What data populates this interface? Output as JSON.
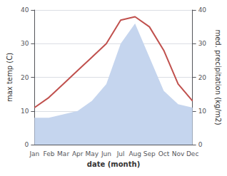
{
  "chart_data": {
    "type": "line",
    "categories": [
      "Jan",
      "Feb",
      "Mar",
      "Apr",
      "May",
      "Jun",
      "Jul",
      "Aug",
      "Sep",
      "Oct",
      "Nov",
      "Dec"
    ],
    "series": [
      {
        "type": "area",
        "color": "#c5d5ee",
        "values": [
          8,
          8,
          9,
          10,
          13,
          18,
          30,
          36,
          26,
          16,
          12,
          11
        ]
      },
      {
        "type": "line",
        "color": "#c0504d",
        "values": [
          11,
          14,
          18,
          22,
          26,
          30,
          37,
          38,
          35,
          28,
          18,
          13
        ]
      }
    ],
    "xlabel": "date (month)",
    "ylabel": "max temp (C)",
    "y2label": "med. precipitation (kg/m2)",
    "ylim": [
      0,
      40
    ],
    "yticks": [
      0,
      10,
      20,
      30,
      40
    ],
    "y2lim": [
      0,
      40
    ],
    "y2ticks": [
      0,
      10,
      20,
      30,
      40
    ],
    "grid": true
  }
}
